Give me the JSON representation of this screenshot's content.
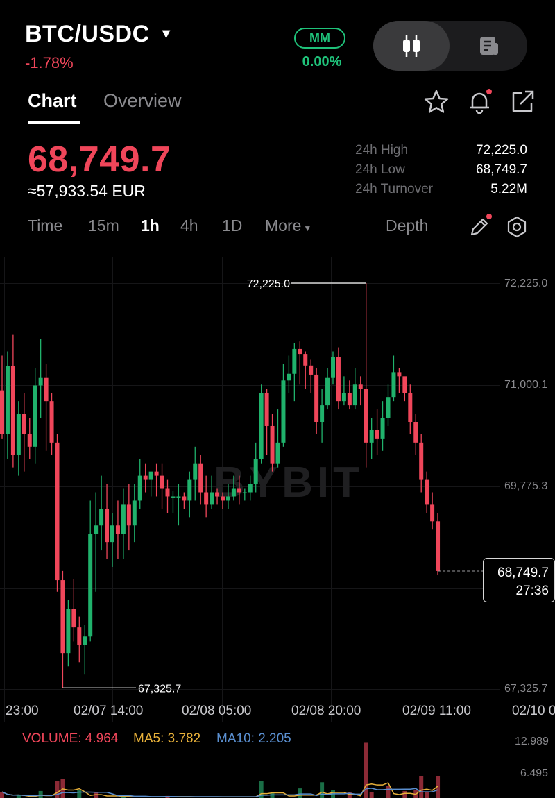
{
  "header": {
    "pair": "BTC/USDC",
    "change": "-1.78%",
    "mm_label": "MM",
    "mm_value": "0.00%",
    "toggle_icons": [
      "candlestick-icon",
      "orderbook-icon"
    ]
  },
  "tabs": [
    {
      "label": "Chart",
      "active": true
    },
    {
      "label": "Overview",
      "active": false
    }
  ],
  "header_icons": [
    "star-icon",
    "bell-icon",
    "share-icon"
  ],
  "ticker": {
    "last_price": "68,749.7",
    "fiat": "≈57,933.54 EUR",
    "stats": [
      {
        "label": "24h High",
        "value": "72,225.0"
      },
      {
        "label": "24h Low",
        "value": "68,749.7"
      },
      {
        "label": "24h Turnover",
        "value": "5.22M"
      }
    ]
  },
  "intervals": {
    "items": [
      "Time",
      "15m",
      "1h",
      "4h",
      "1D"
    ],
    "active": "1h",
    "more": "More",
    "depth": "Depth"
  },
  "colors": {
    "up": "#20b26c",
    "down": "#f0465a",
    "ma5": "#e8b13a",
    "ma10": "#5a8fd0"
  },
  "chart_data": {
    "type": "candlestick",
    "watermark": "BYBIT",
    "y_ticks": [
      "72,225.0",
      "71,000.1",
      "69,775.3",
      "68,749.7",
      "67,325.7"
    ],
    "y_tick_values": [
      72225.0,
      71000.1,
      69775.3,
      67325.7
    ],
    "ylim": [
      67325.7,
      72225.0
    ],
    "x_ticks": [
      "23:00",
      "02/07 14:00",
      "02/08 05:00",
      "02/08 20:00",
      "02/09 11:00",
      "02/10 0"
    ],
    "high_label": "72,225.0",
    "low_label": "67,325.7",
    "last_price": "68,749.7",
    "countdown": "27:36",
    "last_value": 68749.7,
    "candles": [
      [
        70930,
        70400,
        71350,
        70350
      ],
      [
        70400,
        71220,
        71400,
        70100
      ],
      [
        71220,
        70150,
        71600,
        70000
      ],
      [
        70150,
        70650,
        70800,
        69900
      ],
      [
        70650,
        70400,
        70900,
        69950
      ],
      [
        70400,
        70250,
        70600,
        70100
      ],
      [
        70250,
        70990,
        71200,
        70050
      ],
      [
        70990,
        71080,
        71550,
        70600
      ],
      [
        71080,
        70800,
        71250,
        70200
      ],
      [
        70800,
        70300,
        70900,
        70150
      ],
      [
        70300,
        68640,
        70400,
        68500
      ],
      [
        68640,
        67760,
        68750,
        67340
      ],
      [
        67760,
        68290,
        68400,
        67600
      ],
      [
        68290,
        68070,
        68650,
        67900
      ],
      [
        68070,
        67860,
        68200,
        67650
      ],
      [
        67860,
        67960,
        68100,
        67500
      ],
      [
        67960,
        69200,
        69600,
        67900
      ],
      [
        69200,
        69300,
        69700,
        68500
      ],
      [
        69300,
        69500,
        69900,
        69000
      ],
      [
        69500,
        69100,
        69800,
        68900
      ],
      [
        69100,
        69300,
        69450,
        68800
      ],
      [
        69300,
        69200,
        69600,
        68900
      ],
      [
        69200,
        69550,
        69750,
        68900
      ],
      [
        69550,
        69300,
        69800,
        69000
      ],
      [
        69300,
        69600,
        69800,
        69100
      ],
      [
        69600,
        69900,
        70100,
        69500
      ],
      [
        69900,
        69850,
        70050,
        69700
      ],
      [
        69850,
        69950,
        69950,
        69650
      ],
      [
        69950,
        69900,
        70050,
        69650
      ],
      [
        69900,
        69750,
        70050,
        69500
      ],
      [
        69750,
        69650,
        69850,
        69450
      ],
      [
        69650,
        69650,
        69720,
        69450
      ],
      [
        69650,
        69650,
        69800,
        69300
      ],
      [
        69650,
        69600,
        69700,
        69500
      ],
      [
        69600,
        69850,
        69950,
        69400
      ],
      [
        69850,
        70050,
        70250,
        69600
      ],
      [
        70050,
        69700,
        70150,
        69550
      ],
      [
        69700,
        69550,
        69900,
        69400
      ],
      [
        69550,
        69700,
        69900,
        69500
      ],
      [
        69700,
        69650,
        69750,
        69550
      ],
      [
        69650,
        69600,
        69700,
        69500
      ],
      [
        69600,
        69650,
        69800,
        69500
      ],
      [
        69650,
        69750,
        69900,
        69600
      ],
      [
        69750,
        69700,
        69900,
        69550
      ],
      [
        69700,
        69700,
        69750,
        69600
      ],
      [
        69700,
        69800,
        69900,
        69600
      ],
      [
        69800,
        70100,
        70300,
        69700
      ],
      [
        70100,
        70900,
        71000,
        70050
      ],
      [
        70900,
        70500,
        70950,
        70150
      ],
      [
        70500,
        70050,
        70650,
        69950
      ],
      [
        70050,
        70300,
        70700,
        70000
      ],
      [
        70300,
        71050,
        71250,
        70250
      ],
      [
        71050,
        71130,
        71350,
        70900
      ],
      [
        71130,
        71430,
        71500,
        70800
      ],
      [
        71430,
        71370,
        71520,
        71000
      ],
      [
        71370,
        71230,
        71400,
        70950
      ],
      [
        71230,
        71120,
        71300,
        70900
      ],
      [
        71120,
        70550,
        71200,
        70400
      ],
      [
        70550,
        70750,
        70950,
        70300
      ],
      [
        70750,
        71080,
        71200,
        70700
      ],
      [
        71080,
        71330,
        71400,
        71000
      ],
      [
        71330,
        70800,
        71450,
        70700
      ],
      [
        70800,
        70900,
        71100,
        70750
      ],
      [
        70900,
        70750,
        71050,
        70700
      ],
      [
        70750,
        71000,
        71200,
        70700
      ],
      [
        71000,
        70950,
        71100,
        70750
      ],
      [
        70950,
        70300,
        72225,
        70000
      ],
      [
        70300,
        70450,
        70600,
        70100
      ],
      [
        70450,
        70350,
        70700,
        70150
      ],
      [
        70350,
        70600,
        70800,
        70200
      ],
      [
        70600,
        70850,
        71000,
        70500
      ],
      [
        70850,
        71150,
        71350,
        70800
      ],
      [
        71150,
        71100,
        71200,
        70900
      ],
      [
        71100,
        70900,
        71050,
        70800
      ],
      [
        70900,
        70550,
        71000,
        70400
      ],
      [
        70550,
        70300,
        70650,
        70150
      ],
      [
        70300,
        69850,
        70400,
        69700
      ],
      [
        69850,
        69550,
        69950,
        69450
      ],
      [
        69550,
        69350,
        69700,
        69250
      ],
      [
        69350,
        68750,
        69450,
        68700
      ]
    ],
    "volume": {
      "legend": {
        "volume": "VOLUME: 4.964",
        "ma5": "MA5: 3.782",
        "ma10": "MA10: 2.205"
      },
      "y_ticks": [
        "12.989",
        "6.495"
      ],
      "bars": [
        {
          "i": 0,
          "v": 1.4,
          "up": false
        },
        {
          "i": 3,
          "v": 0.8,
          "up": true
        },
        {
          "i": 7,
          "v": 1.6,
          "up": true
        },
        {
          "i": 10,
          "v": 3.8,
          "up": false
        },
        {
          "i": 11,
          "v": 4.4,
          "up": false
        },
        {
          "i": 14,
          "v": 1.8,
          "up": true
        },
        {
          "i": 17,
          "v": 1.2,
          "up": false
        },
        {
          "i": 22,
          "v": 0.6,
          "up": true
        },
        {
          "i": 30,
          "v": 0.5,
          "up": false
        },
        {
          "i": 47,
          "v": 3.8,
          "up": true
        },
        {
          "i": 49,
          "v": 1.2,
          "up": true
        },
        {
          "i": 54,
          "v": 2.2,
          "up": true
        },
        {
          "i": 58,
          "v": 3.6,
          "up": true
        },
        {
          "i": 60,
          "v": 1.8,
          "up": true
        },
        {
          "i": 63,
          "v": 1.4,
          "up": false
        },
        {
          "i": 66,
          "v": 12.6,
          "up": false
        },
        {
          "i": 67,
          "v": 1.4,
          "up": false
        },
        {
          "i": 70,
          "v": 2.8,
          "up": false
        },
        {
          "i": 73,
          "v": 1.6,
          "up": false
        },
        {
          "i": 75,
          "v": 1.8,
          "up": false
        },
        {
          "i": 76,
          "v": 5.0,
          "up": false
        },
        {
          "i": 77,
          "v": 1.4,
          "up": false
        },
        {
          "i": 79,
          "v": 4.964,
          "up": false
        }
      ]
    }
  }
}
